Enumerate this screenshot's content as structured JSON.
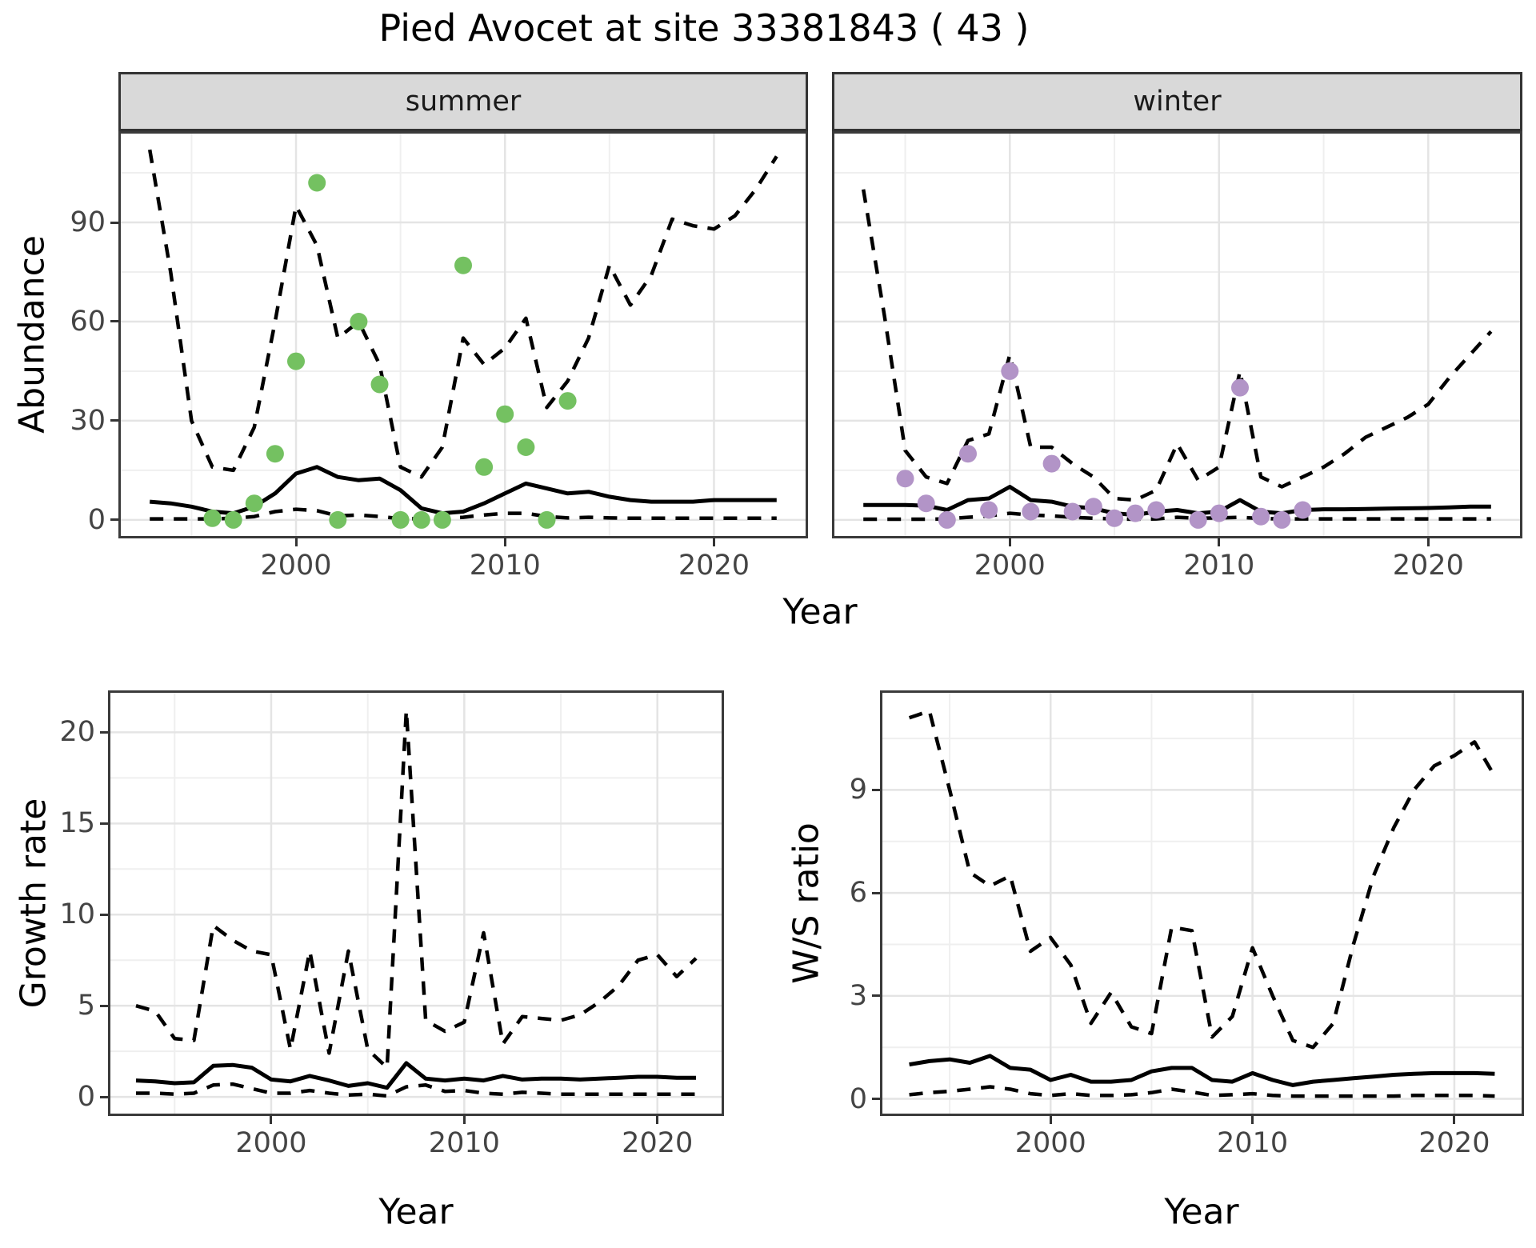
{
  "title": "Pied Avocet at site 33381843 ( 43 )",
  "axis_labels": {
    "abundance": "Abundance",
    "growth": "Growth rate",
    "ws": "W/S ratio",
    "year": "Year"
  },
  "colors": {
    "summer_point": "#74C161",
    "winter_point": "#B294C7",
    "line": "#000000",
    "grid_major": "#e4e4e4",
    "grid_minor": "#efefef",
    "panel_border": "#3a3a3a",
    "strip_bg": "#d9d9d9",
    "tick_text": "#444444"
  },
  "chart_data": [
    {
      "key": "summer",
      "type": "line",
      "facet_label": "summer",
      "ylabel": "Abundance",
      "xlabel": "Year",
      "x": [
        1993,
        1994,
        1995,
        1996,
        1997,
        1998,
        1999,
        2000,
        2001,
        2002,
        2003,
        2004,
        2005,
        2006,
        2007,
        2008,
        2009,
        2010,
        2011,
        2012,
        2013,
        2014,
        2015,
        2016,
        2017,
        2018,
        2019,
        2020,
        2021,
        2022,
        2023
      ],
      "series": [
        {
          "name": "upper_95ci",
          "style": "dashed",
          "values": [
            112,
            75,
            30,
            16,
            15,
            28,
            60,
            95,
            83,
            55,
            60,
            47,
            16,
            13,
            22,
            55,
            47,
            52,
            61,
            34,
            42,
            55,
            77,
            65,
            74,
            91,
            89,
            88,
            92,
            100,
            110
          ]
        },
        {
          "name": "median",
          "style": "solid",
          "values": [
            5.5,
            5,
            4,
            2.5,
            2,
            4,
            8,
            14,
            16,
            13,
            12,
            12.5,
            9,
            3.5,
            2,
            2.5,
            5,
            8,
            11,
            9.5,
            8,
            8.5,
            7,
            6,
            5.5,
            5.5,
            5.5,
            6,
            6,
            6,
            6
          ]
        },
        {
          "name": "lower_95ci",
          "style": "dashed",
          "values": [
            0.3,
            0.3,
            0.3,
            0.3,
            0.5,
            1,
            2.5,
            3.2,
            2.8,
            1.2,
            1.5,
            1,
            0.4,
            0.3,
            0.4,
            0.8,
            1.5,
            2,
            2,
            1,
            0.6,
            0.8,
            0.6,
            0.5,
            0.5,
            0.5,
            0.5,
            0.5,
            0.5,
            0.5,
            0.5
          ]
        }
      ],
      "points": {
        "name": "observed_counts",
        "color": "#74C161",
        "data": [
          [
            1996,
            0.5
          ],
          [
            1997,
            0
          ],
          [
            1998,
            5
          ],
          [
            1999,
            20
          ],
          [
            2000,
            48
          ],
          [
            2001,
            102
          ],
          [
            2002,
            0
          ],
          [
            2003,
            60
          ],
          [
            2004,
            41
          ],
          [
            2005,
            0
          ],
          [
            2006,
            0
          ],
          [
            2007,
            0
          ],
          [
            2008,
            77
          ],
          [
            2009,
            16
          ],
          [
            2010,
            32
          ],
          [
            2011,
            22
          ],
          [
            2012,
            0
          ],
          [
            2013,
            36
          ]
        ]
      },
      "xlim": [
        1991.5,
        2024.5
      ],
      "ylim": [
        -5.6,
        117.6
      ],
      "xticks": [
        2000,
        2010,
        2020
      ],
      "yticks": [
        0,
        30,
        60,
        90
      ],
      "minor_x": [
        1995,
        2005,
        2015
      ],
      "minor_y": [
        15,
        45,
        75,
        105
      ],
      "grid": true,
      "legend": null
    },
    {
      "key": "winter",
      "type": "line",
      "facet_label": "winter",
      "xlabel": "Year",
      "x": [
        1993,
        1994,
        1995,
        1996,
        1997,
        1998,
        1999,
        2000,
        2001,
        2002,
        2003,
        2004,
        2005,
        2006,
        2007,
        2008,
        2009,
        2010,
        2011,
        2012,
        2013,
        2014,
        2015,
        2016,
        2017,
        2018,
        2019,
        2020,
        2021,
        2022,
        2023
      ],
      "series": [
        {
          "name": "upper_95ci",
          "style": "dashed",
          "values": [
            100,
            62,
            21,
            13,
            11,
            24,
            26,
            50,
            22,
            22,
            17,
            13,
            6.5,
            6,
            9,
            23,
            12,
            16,
            45,
            13,
            10,
            13,
            16,
            20,
            25,
            28,
            31,
            35,
            43,
            50,
            57
          ]
        },
        {
          "name": "median",
          "style": "solid",
          "values": [
            4.5,
            4.5,
            4.5,
            4.3,
            3,
            6,
            6.5,
            10,
            6,
            5.5,
            4,
            3.5,
            2,
            1.5,
            2.5,
            3,
            2,
            2.5,
            6,
            2.5,
            2,
            3,
            3.2,
            3.2,
            3.3,
            3.4,
            3.5,
            3.6,
            3.8,
            4,
            4
          ]
        },
        {
          "name": "lower_95ci",
          "style": "dashed",
          "values": [
            0.2,
            0.2,
            0.2,
            0.2,
            0.3,
            0.8,
            1.2,
            2,
            1.5,
            1.2,
            0.8,
            0.5,
            0.3,
            0.2,
            0.3,
            0.8,
            0.5,
            0.6,
            0.8,
            0.4,
            0.3,
            0.3,
            0.3,
            0.3,
            0.3,
            0.3,
            0.3,
            0.3,
            0.3,
            0.3,
            0.3
          ]
        }
      ],
      "points": {
        "name": "observed_counts",
        "color": "#B294C7",
        "data": [
          [
            1995,
            12.5
          ],
          [
            1996,
            5
          ],
          [
            1997,
            0
          ],
          [
            1998,
            20
          ],
          [
            1999,
            3
          ],
          [
            2000,
            45
          ],
          [
            2001,
            2.5
          ],
          [
            2002,
            17
          ],
          [
            2003,
            2.5
          ],
          [
            2004,
            4
          ],
          [
            2005,
            0.5
          ],
          [
            2006,
            2
          ],
          [
            2007,
            3
          ],
          [
            2009,
            0
          ],
          [
            2010,
            2
          ],
          [
            2011,
            40
          ],
          [
            2012,
            1
          ],
          [
            2013,
            0
          ],
          [
            2014,
            3
          ]
        ]
      },
      "xlim": [
        1991.5,
        2024.5
      ],
      "ylim": [
        -5.6,
        117.6
      ],
      "xticks": [
        2000,
        2010,
        2020
      ],
      "yticks": [
        0,
        30,
        60,
        90
      ],
      "minor_x": [
        1995,
        2005,
        2015
      ],
      "minor_y": [
        15,
        45,
        75,
        105
      ],
      "grid": true,
      "legend": null
    },
    {
      "key": "growth",
      "type": "line",
      "facet_label": null,
      "ylabel": "Growth rate",
      "xlabel": "Year",
      "x": [
        1993,
        1994,
        1995,
        1996,
        1997,
        1998,
        1999,
        2000,
        2001,
        2002,
        2003,
        2004,
        2005,
        2006,
        2007,
        2008,
        2009,
        2010,
        2011,
        2012,
        2013,
        2014,
        2015,
        2016,
        2017,
        2018,
        2019,
        2020,
        2021,
        2022
      ],
      "series": [
        {
          "name": "upper_95ci",
          "style": "dashed",
          "values": [
            5.0,
            4.7,
            3.2,
            3.1,
            9.4,
            8.6,
            8.0,
            7.8,
            2.6,
            8.0,
            2.4,
            8.0,
            2.6,
            1.6,
            21.2,
            4.2,
            3.6,
            4.1,
            9.0,
            2.9,
            4.4,
            4.3,
            4.2,
            4.5,
            5.2,
            6.1,
            7.5,
            7.8,
            6.6,
            7.6
          ]
        },
        {
          "name": "median",
          "style": "solid",
          "values": [
            0.9,
            0.85,
            0.75,
            0.8,
            1.7,
            1.75,
            1.6,
            0.95,
            0.85,
            1.15,
            0.9,
            0.6,
            0.75,
            0.5,
            1.85,
            1.0,
            0.9,
            1.0,
            0.9,
            1.15,
            0.95,
            1.0,
            1.0,
            0.95,
            1.0,
            1.05,
            1.1,
            1.1,
            1.05,
            1.05
          ]
        },
        {
          "name": "lower_95ci",
          "style": "dashed",
          "values": [
            0.2,
            0.2,
            0.15,
            0.2,
            0.65,
            0.7,
            0.45,
            0.2,
            0.2,
            0.35,
            0.2,
            0.1,
            0.15,
            0.05,
            0.55,
            0.65,
            0.3,
            0.35,
            0.2,
            0.15,
            0.25,
            0.2,
            0.15,
            0.15,
            0.15,
            0.15,
            0.15,
            0.15,
            0.15,
            0.15
          ]
        }
      ],
      "points": null,
      "xlim": [
        1991.55,
        2023.45
      ],
      "ylim": [
        -1.05,
        22.3
      ],
      "xticks": [
        2000,
        2010,
        2020
      ],
      "yticks": [
        0,
        5,
        10,
        15,
        20
      ],
      "minor_x": [
        1995,
        2005,
        2015
      ],
      "minor_y": [
        2.5,
        7.5,
        12.5,
        17.5
      ],
      "grid": true,
      "legend": null
    },
    {
      "key": "ws",
      "type": "line",
      "facet_label": null,
      "ylabel": "W/S ratio",
      "xlabel": "Year",
      "x": [
        1993,
        1994,
        1995,
        1996,
        1997,
        1998,
        1999,
        2000,
        2001,
        2002,
        2003,
        2004,
        2005,
        2006,
        2007,
        2008,
        2009,
        2010,
        2011,
        2012,
        2013,
        2014,
        2015,
        2016,
        2017,
        2018,
        2019,
        2020,
        2021,
        2022
      ],
      "series": [
        {
          "name": "upper_95ci",
          "style": "dashed",
          "values": [
            11.1,
            11.3,
            9.0,
            6.6,
            6.2,
            6.5,
            4.3,
            4.7,
            3.9,
            2.2,
            3.1,
            2.1,
            1.9,
            5.0,
            4.9,
            1.8,
            2.4,
            4.4,
            3.0,
            1.7,
            1.5,
            2.2,
            4.5,
            6.5,
            7.9,
            9.0,
            9.7,
            10.0,
            10.4,
            9.4
          ]
        },
        {
          "name": "median",
          "style": "solid",
          "values": [
            1.0,
            1.1,
            1.15,
            1.05,
            1.25,
            0.9,
            0.85,
            0.55,
            0.7,
            0.5,
            0.5,
            0.55,
            0.8,
            0.9,
            0.9,
            0.55,
            0.5,
            0.75,
            0.55,
            0.4,
            0.5,
            0.55,
            0.6,
            0.65,
            0.7,
            0.73,
            0.75,
            0.75,
            0.75,
            0.73
          ]
        },
        {
          "name": "lower_95ci",
          "style": "dashed",
          "values": [
            0.12,
            0.18,
            0.22,
            0.28,
            0.35,
            0.28,
            0.15,
            0.1,
            0.15,
            0.1,
            0.1,
            0.12,
            0.18,
            0.28,
            0.2,
            0.1,
            0.12,
            0.15,
            0.1,
            0.08,
            0.08,
            0.08,
            0.08,
            0.08,
            0.08,
            0.1,
            0.1,
            0.1,
            0.1,
            0.08
          ]
        }
      ],
      "points": null,
      "xlim": [
        1991.55,
        2023.45
      ],
      "ylim": [
        -0.5,
        11.9
      ],
      "xticks": [
        2000,
        2010,
        2020
      ],
      "yticks": [
        0,
        3,
        6,
        9
      ],
      "minor_x": [
        1995,
        2005,
        2015
      ],
      "minor_y": [
        1.5,
        4.5,
        7.5,
        10.5
      ],
      "grid": true,
      "legend": null
    }
  ]
}
